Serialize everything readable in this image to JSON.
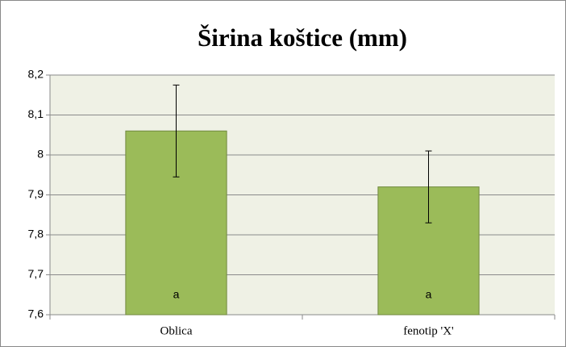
{
  "chart_data": {
    "type": "bar",
    "title": "Širina koštice (mm)",
    "categories": [
      "Oblica",
      "fenotip 'X'"
    ],
    "values": [
      8.06,
      7.92
    ],
    "errors": [
      0.115,
      0.09
    ],
    "annotations": [
      "a",
      "a"
    ],
    "color": "#9bbb59",
    "ylim": [
      7.6,
      8.2
    ],
    "yticks": [
      {
        "value": 7.6,
        "label": "7,6"
      },
      {
        "value": 7.7,
        "label": "7,7"
      },
      {
        "value": 7.8,
        "label": "7,8"
      },
      {
        "value": 7.9,
        "label": "7,9"
      },
      8,
      {
        "value": 8.1,
        "label": "8,1"
      },
      {
        "value": 8.2,
        "label": "8,2"
      }
    ],
    "grid": true
  }
}
